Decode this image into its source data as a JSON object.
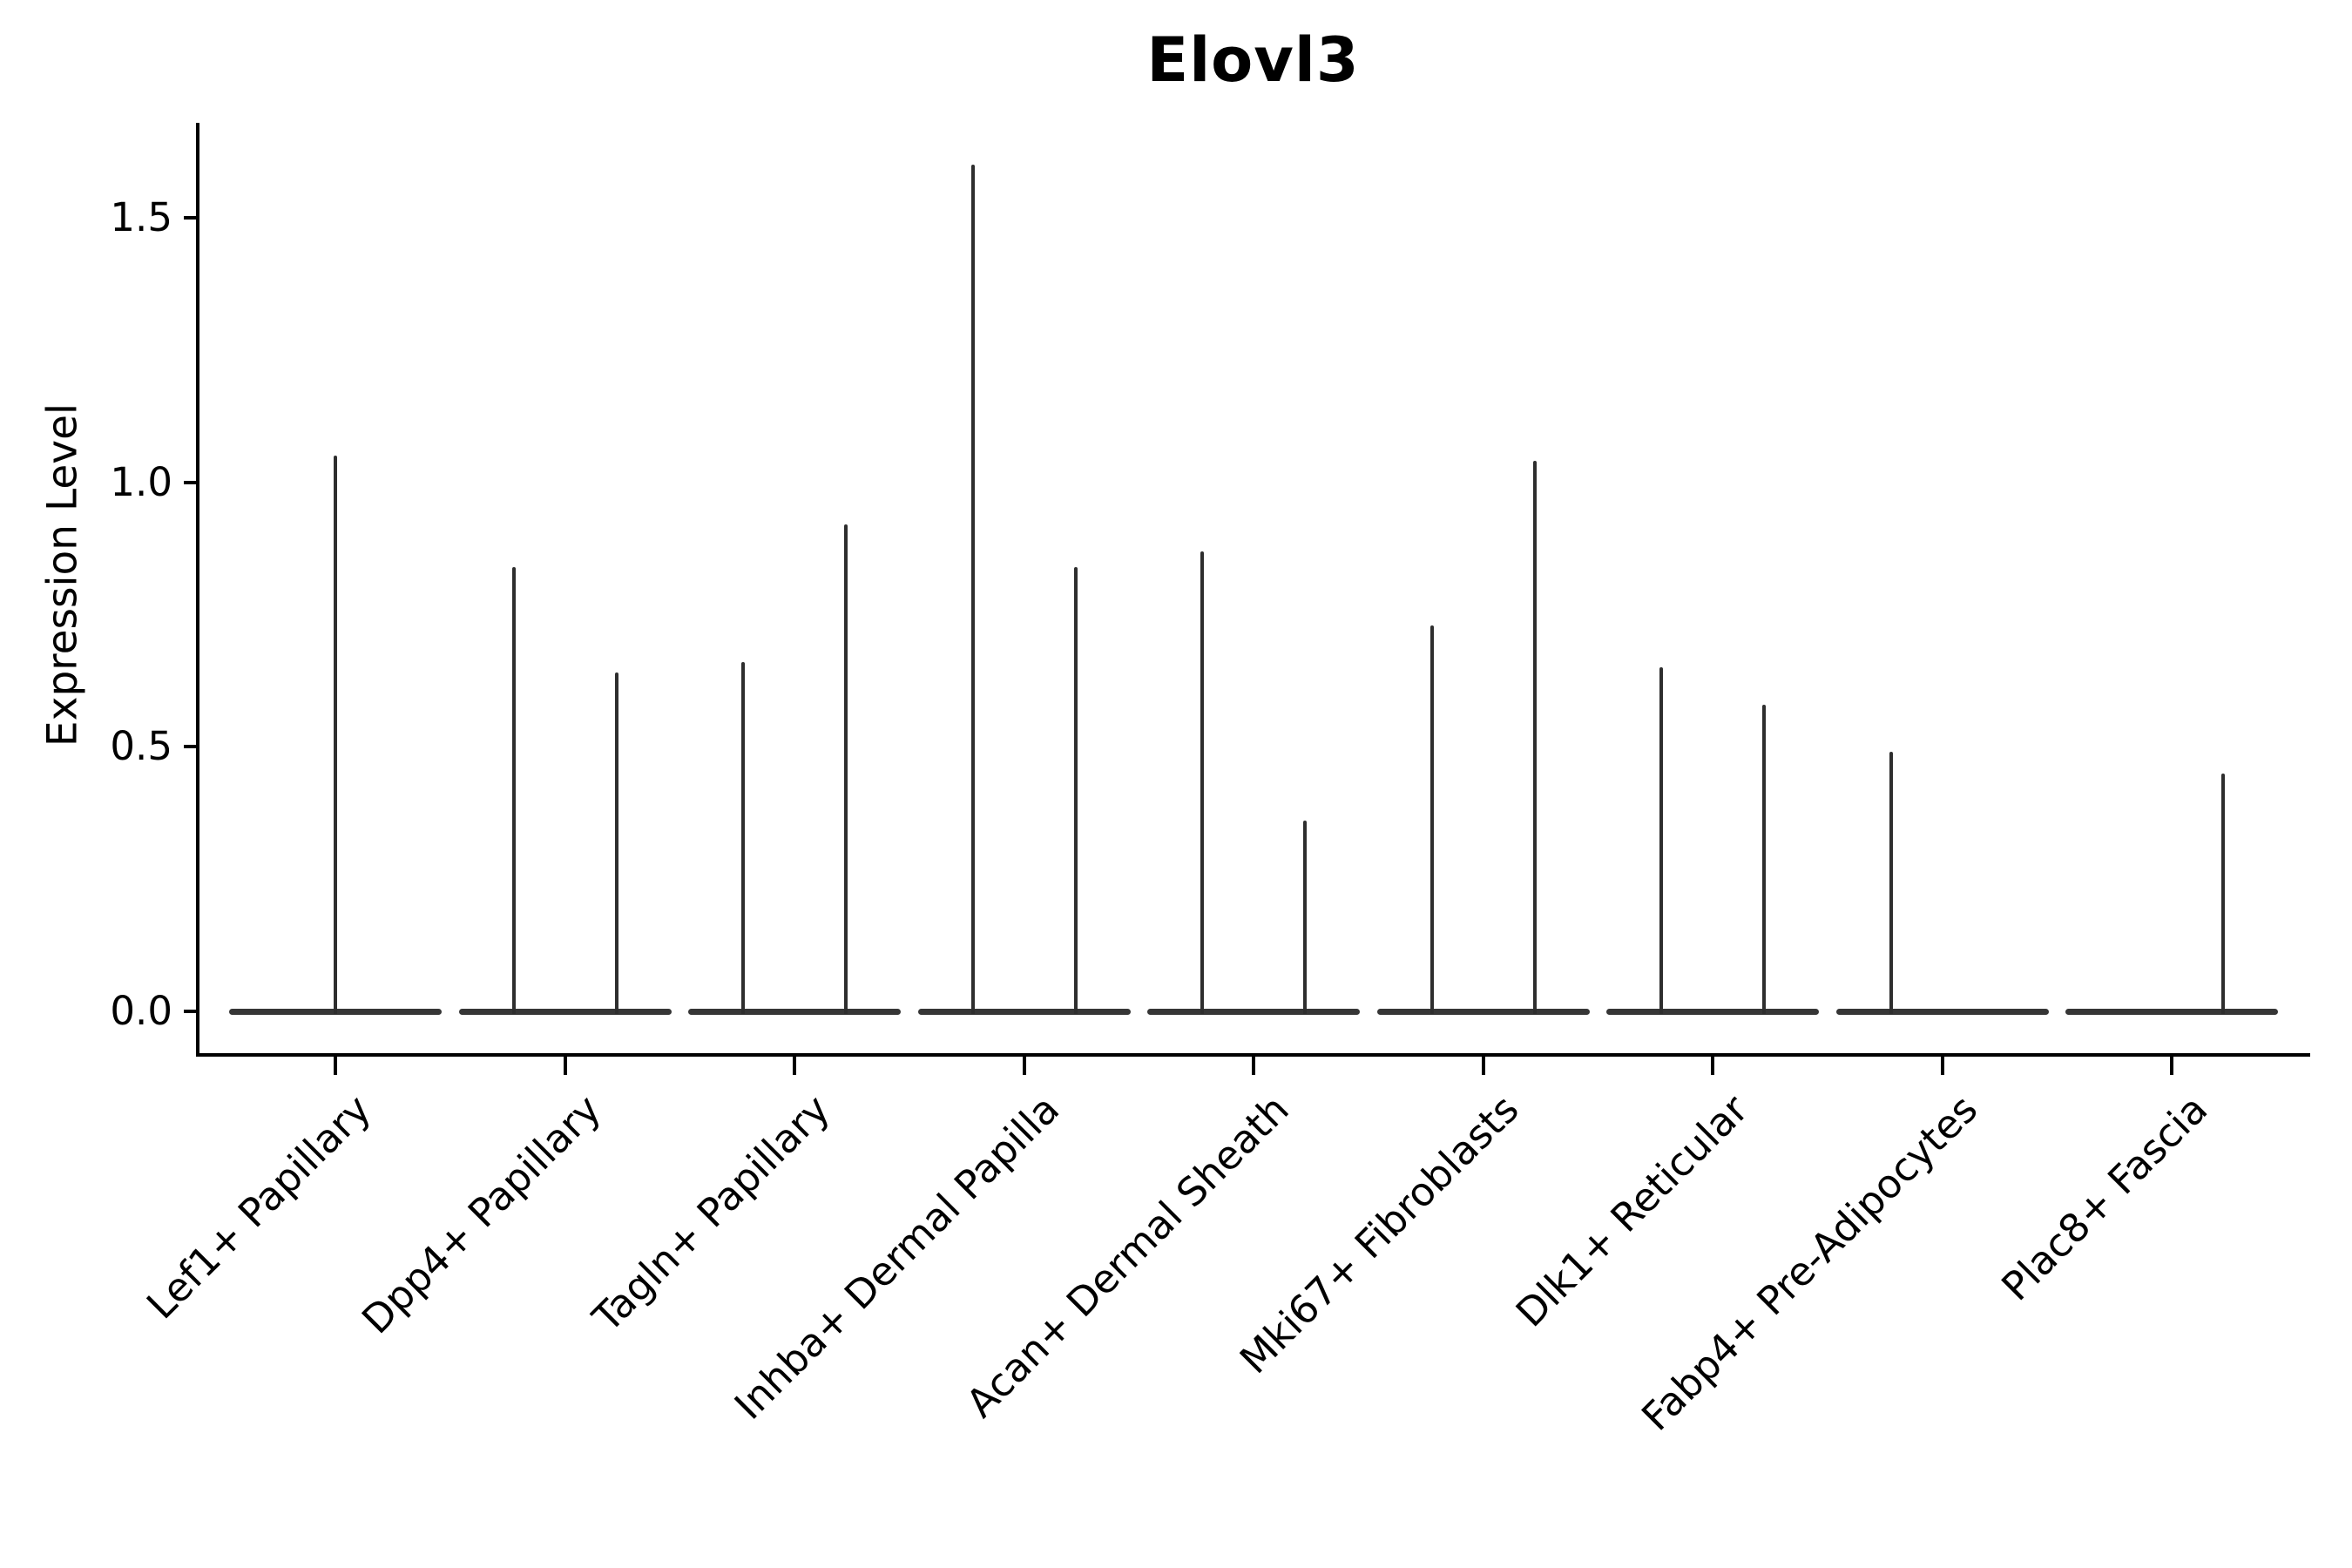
{
  "title": "Elovl3",
  "axes": {
    "ylabel": "Expression Level"
  },
  "chart_data": {
    "type": "violin",
    "title": "Elovl3",
    "xlabel": "",
    "ylabel": "Expression Level",
    "ylim": [
      -0.08,
      1.68
    ],
    "yticks": [
      0.0,
      0.5,
      1.0,
      1.5
    ],
    "ytick_labels": [
      "0.0",
      "0.5",
      "1.0",
      "1.5"
    ],
    "grid": false,
    "legend": "none",
    "note_style": "needle-thin violins: wide flat body at 0 expression with a thin spike up to the max expression value",
    "categories": [
      {
        "label": "Lef1+ Papillary",
        "spikes": [
          {
            "offset": 0,
            "max": 1.05
          }
        ]
      },
      {
        "label": "Dpp4+ Papillary",
        "spikes": [
          {
            "offset": -1,
            "max": 0.84
          },
          {
            "offset": 1,
            "max": 0.64
          }
        ]
      },
      {
        "label": "Tagln+ Papillary",
        "spikes": [
          {
            "offset": -1,
            "max": 0.66
          },
          {
            "offset": 1,
            "max": 0.92
          }
        ]
      },
      {
        "label": "Inhba+ Dermal Papilla",
        "spikes": [
          {
            "offset": -1,
            "max": 1.6
          },
          {
            "offset": 1,
            "max": 0.84
          }
        ]
      },
      {
        "label": "Acan+ Dermal Sheath",
        "spikes": [
          {
            "offset": -1,
            "max": 0.87
          },
          {
            "offset": 1,
            "max": 0.36
          }
        ]
      },
      {
        "label": "Mki67+ Fibroblasts",
        "spikes": [
          {
            "offset": -1,
            "max": 0.73
          },
          {
            "offset": 1,
            "max": 1.04
          }
        ]
      },
      {
        "label": "Dlk1+ Reticular",
        "spikes": [
          {
            "offset": -1,
            "max": 0.65
          },
          {
            "offset": 1,
            "max": 0.58
          }
        ]
      },
      {
        "label": "Fabp4+ Pre-Adipocytes",
        "spikes": [
          {
            "offset": -1,
            "max": 0.49
          }
        ]
      },
      {
        "label": "Plac8+ Fascia",
        "spikes": [
          {
            "offset": 1,
            "max": 0.45
          }
        ]
      }
    ],
    "colors": {
      "spike": "#2e2e2e",
      "body": "#363636",
      "axis": "#000000",
      "background": "#ffffff"
    }
  }
}
